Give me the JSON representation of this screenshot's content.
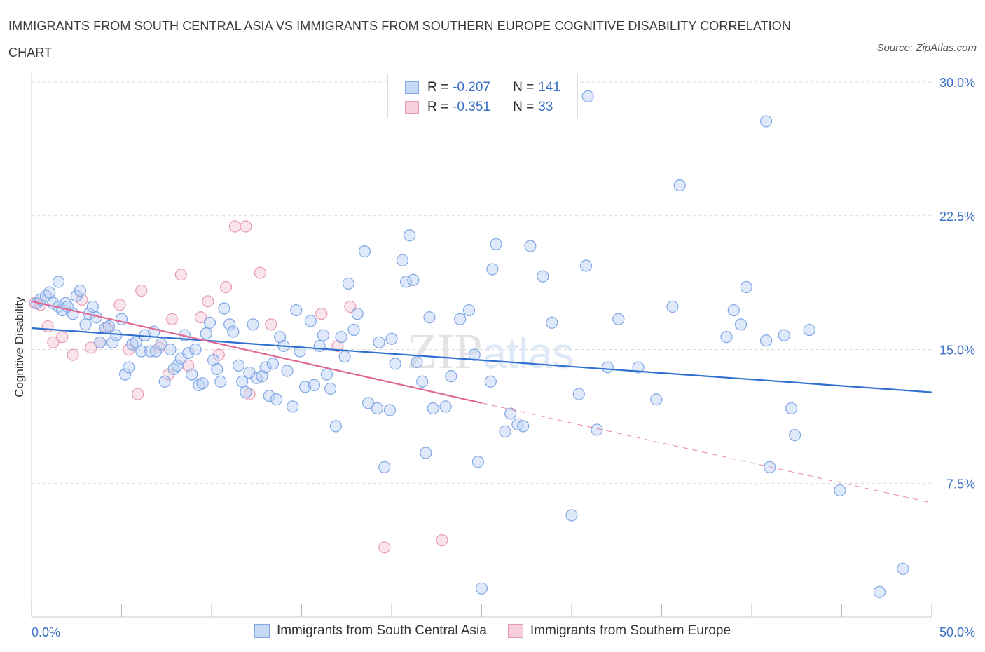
{
  "title": "IMMIGRANTS FROM SOUTH CENTRAL ASIA VS IMMIGRANTS FROM SOUTHERN EUROPE COGNITIVE DISABILITY CORRELATION CHART",
  "source": "Source: ZipAtlas.com",
  "legend": {
    "series1": {
      "r_label": "R =",
      "r_value": "-0.207",
      "n_label": "N =",
      "n_value": "141"
    },
    "series2": {
      "r_label": "R =",
      "r_value": "-0.351",
      "n_label": "N =",
      "n_value": "33"
    }
  },
  "chart_data": {
    "type": "scatter",
    "title": "IMMIGRANTS FROM SOUTH CENTRAL ASIA VS IMMIGRANTS FROM SOUTHERN EUROPE COGNITIVE DISABILITY CORRELATION CHART",
    "xlabel": "",
    "ylabel": "Cognitive Disability",
    "xlim": [
      0,
      50
    ],
    "ylim": [
      0,
      30
    ],
    "x_tick_labels": [
      "0.0%",
      "50.0%"
    ],
    "y_ticks": [
      7.5,
      15.0,
      22.5,
      30.0
    ],
    "y_tick_labels": [
      "7.5%",
      "15.0%",
      "22.5%",
      "30.0%"
    ],
    "grid": "horizontal dashed",
    "legend_position": "top-center and bottom",
    "watermark": "ZIPatlas",
    "colors": {
      "series1": "#4a7fd4",
      "series2": "#e07aa0",
      "line1": "#2f6fd0",
      "line2": "#e06896"
    },
    "series": [
      {
        "name": "Immigrants from South Central Asia",
        "trend": {
          "x": [
            0,
            50
          ],
          "y": [
            16.2,
            12.6
          ]
        },
        "points": [
          [
            0.3,
            17.6
          ],
          [
            0.5,
            17.8
          ],
          [
            0.8,
            18.0
          ],
          [
            1.0,
            18.2
          ],
          [
            1.2,
            17.6
          ],
          [
            1.5,
            17.4
          ],
          [
            1.5,
            18.8
          ],
          [
            1.7,
            17.2
          ],
          [
            1.9,
            17.6
          ],
          [
            2.0,
            17.4
          ],
          [
            2.3,
            17.0
          ],
          [
            2.5,
            18.0
          ],
          [
            2.7,
            18.3
          ],
          [
            3.0,
            16.4
          ],
          [
            3.2,
            17.0
          ],
          [
            3.4,
            17.4
          ],
          [
            3.6,
            16.8
          ],
          [
            3.8,
            15.4
          ],
          [
            4.1,
            16.2
          ],
          [
            4.3,
            16.3
          ],
          [
            4.5,
            15.4
          ],
          [
            4.7,
            15.8
          ],
          [
            5.0,
            16.7
          ],
          [
            5.2,
            13.6
          ],
          [
            5.4,
            14.0
          ],
          [
            5.6,
            15.3
          ],
          [
            5.8,
            15.4
          ],
          [
            6.1,
            14.9
          ],
          [
            6.3,
            15.8
          ],
          [
            6.6,
            14.9
          ],
          [
            6.8,
            16.0
          ],
          [
            6.9,
            14.9
          ],
          [
            7.2,
            15.3
          ],
          [
            7.4,
            13.2
          ],
          [
            7.7,
            15.0
          ],
          [
            7.9,
            13.9
          ],
          [
            8.1,
            14.1
          ],
          [
            8.3,
            14.5
          ],
          [
            8.5,
            15.8
          ],
          [
            8.7,
            14.8
          ],
          [
            8.9,
            13.6
          ],
          [
            9.1,
            15.0
          ],
          [
            9.3,
            13.0
          ],
          [
            9.5,
            13.1
          ],
          [
            9.7,
            15.9
          ],
          [
            9.9,
            16.5
          ],
          [
            10.1,
            14.4
          ],
          [
            10.3,
            13.9
          ],
          [
            10.5,
            13.2
          ],
          [
            10.7,
            17.3
          ],
          [
            11.0,
            16.4
          ],
          [
            11.2,
            16.0
          ],
          [
            11.5,
            14.1
          ],
          [
            11.7,
            13.2
          ],
          [
            11.9,
            12.6
          ],
          [
            12.1,
            13.7
          ],
          [
            12.3,
            16.4
          ],
          [
            12.5,
            13.4
          ],
          [
            12.8,
            13.5
          ],
          [
            13.0,
            14.0
          ],
          [
            13.2,
            12.4
          ],
          [
            13.4,
            14.2
          ],
          [
            13.6,
            12.2
          ],
          [
            13.8,
            15.7
          ],
          [
            14.0,
            15.2
          ],
          [
            14.2,
            13.8
          ],
          [
            14.5,
            11.8
          ],
          [
            14.7,
            17.2
          ],
          [
            14.9,
            14.9
          ],
          [
            15.2,
            12.9
          ],
          [
            15.5,
            16.6
          ],
          [
            15.7,
            13.0
          ],
          [
            16.0,
            15.2
          ],
          [
            16.2,
            15.8
          ],
          [
            16.4,
            13.6
          ],
          [
            16.6,
            12.8
          ],
          [
            16.9,
            10.7
          ],
          [
            17.2,
            15.7
          ],
          [
            17.4,
            14.6
          ],
          [
            17.6,
            18.7
          ],
          [
            17.9,
            16.1
          ],
          [
            18.1,
            17.0
          ],
          [
            18.5,
            20.5
          ],
          [
            18.7,
            12.0
          ],
          [
            19.2,
            11.7
          ],
          [
            19.3,
            15.4
          ],
          [
            19.6,
            8.4
          ],
          [
            19.9,
            11.6
          ],
          [
            20.0,
            15.6
          ],
          [
            20.2,
            14.2
          ],
          [
            20.6,
            20.0
          ],
          [
            20.8,
            18.8
          ],
          [
            21.0,
            21.4
          ],
          [
            21.2,
            18.9
          ],
          [
            21.4,
            14.3
          ],
          [
            21.7,
            13.2
          ],
          [
            21.9,
            9.2
          ],
          [
            22.1,
            16.8
          ],
          [
            22.3,
            11.7
          ],
          [
            23.0,
            11.8
          ],
          [
            23.3,
            13.5
          ],
          [
            23.8,
            16.7
          ],
          [
            24.3,
            17.2
          ],
          [
            24.6,
            14.7
          ],
          [
            24.8,
            8.7
          ],
          [
            25.5,
            13.2
          ],
          [
            25.6,
            19.5
          ],
          [
            25.8,
            20.9
          ],
          [
            26.3,
            10.4
          ],
          [
            27.0,
            10.8
          ],
          [
            27.3,
            10.7
          ],
          [
            27.7,
            20.8
          ],
          [
            28.4,
            19.1
          ],
          [
            28.9,
            16.5
          ],
          [
            30.0,
            5.7
          ],
          [
            30.4,
            12.5
          ],
          [
            30.8,
            19.7
          ],
          [
            31.4,
            10.5
          ],
          [
            32.0,
            14.0
          ],
          [
            32.6,
            16.7
          ],
          [
            33.7,
            14.0
          ],
          [
            34.7,
            12.2
          ],
          [
            35.6,
            17.4
          ],
          [
            36.0,
            24.2
          ],
          [
            38.6,
            15.7
          ],
          [
            39.0,
            17.2
          ],
          [
            39.4,
            16.4
          ],
          [
            39.7,
            18.5
          ],
          [
            40.8,
            15.5
          ],
          [
            40.8,
            27.8
          ],
          [
            41.0,
            8.4
          ],
          [
            41.8,
            15.8
          ],
          [
            42.2,
            11.7
          ],
          [
            42.4,
            10.2
          ],
          [
            43.2,
            16.1
          ],
          [
            44.9,
            7.1
          ],
          [
            47.1,
            1.4
          ],
          [
            48.4,
            2.7
          ],
          [
            30.9,
            29.2
          ],
          [
            25.0,
            1.6
          ],
          [
            26.6,
            11.4
          ]
        ]
      },
      {
        "name": "Immigrants from Southern Europe",
        "trend": {
          "x": [
            0,
            25
          ],
          "y": [
            17.7,
            12.0
          ]
        },
        "trend_extension": {
          "x": [
            25,
            50
          ],
          "y": [
            12.0,
            6.4
          ]
        },
        "points": [
          [
            0.2,
            17.6
          ],
          [
            0.5,
            17.5
          ],
          [
            0.9,
            16.3
          ],
          [
            1.2,
            15.4
          ],
          [
            1.7,
            15.7
          ],
          [
            2.3,
            14.7
          ],
          [
            2.8,
            17.8
          ],
          [
            3.3,
            15.1
          ],
          [
            3.8,
            15.4
          ],
          [
            4.2,
            16.2
          ],
          [
            4.9,
            17.5
          ],
          [
            5.4,
            15.0
          ],
          [
            5.9,
            12.5
          ],
          [
            6.1,
            18.3
          ],
          [
            7.1,
            15.1
          ],
          [
            7.6,
            13.6
          ],
          [
            7.8,
            16.7
          ],
          [
            8.3,
            19.2
          ],
          [
            8.7,
            14.1
          ],
          [
            9.4,
            16.8
          ],
          [
            9.8,
            17.7
          ],
          [
            10.4,
            14.7
          ],
          [
            10.8,
            18.5
          ],
          [
            11.3,
            21.9
          ],
          [
            11.9,
            21.9
          ],
          [
            12.1,
            12.5
          ],
          [
            12.7,
            19.3
          ],
          [
            13.3,
            16.4
          ],
          [
            16.1,
            17.0
          ],
          [
            17.0,
            15.2
          ],
          [
            17.7,
            17.4
          ],
          [
            19.6,
            3.9
          ],
          [
            22.8,
            4.3
          ]
        ]
      }
    ]
  }
}
